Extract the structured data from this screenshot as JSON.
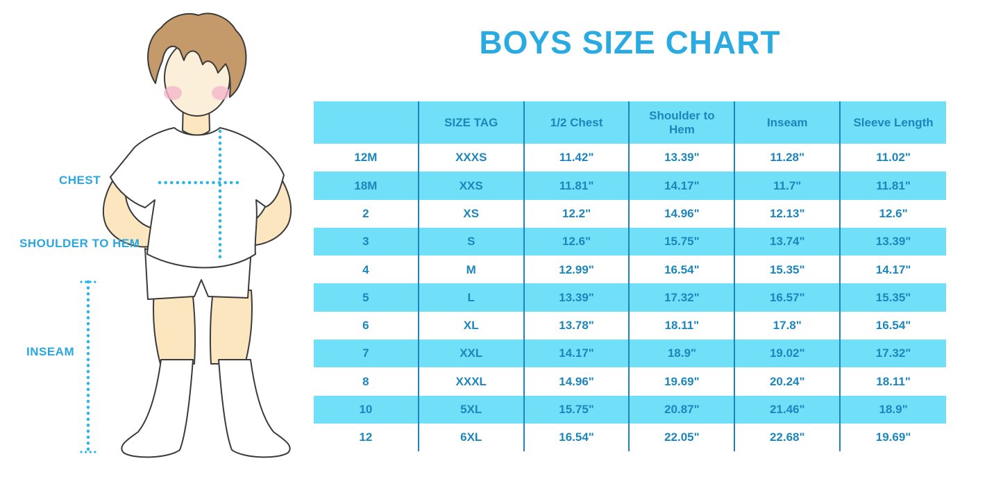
{
  "title": "BOYS SIZE CHART",
  "figure": {
    "labels": {
      "chest": "CHEST",
      "shoulder_to_hem": "SHOULDER TO HEM",
      "inseam": "INSEAM"
    }
  },
  "chart_data": {
    "type": "table",
    "title": "BOYS SIZE CHART",
    "columns": [
      "",
      "SIZE TAG",
      "1/2 Chest",
      "Shoulder to Hem",
      "Inseam",
      "Sleeve Length"
    ],
    "rows": [
      [
        "12M",
        "XXXS",
        "11.42\"",
        "13.39\"",
        "11.28\"",
        "11.02\""
      ],
      [
        "18M",
        "XXS",
        "11.81\"",
        "14.17\"",
        "11.7\"",
        "11.81\""
      ],
      [
        "2",
        "XS",
        "12.2\"",
        "14.96\"",
        "12.13\"",
        "12.6\""
      ],
      [
        "3",
        "S",
        "12.6\"",
        "15.75\"",
        "13.74\"",
        "13.39\""
      ],
      [
        "4",
        "M",
        "12.99\"",
        "16.54\"",
        "15.35\"",
        "14.17\""
      ],
      [
        "5",
        "L",
        "13.39\"",
        "17.32\"",
        "16.57\"",
        "15.35\""
      ],
      [
        "6",
        "XL",
        "13.78\"",
        "18.11\"",
        "17.8\"",
        "16.54\""
      ],
      [
        "7",
        "XXL",
        "14.17\"",
        "18.9\"",
        "19.02\"",
        "17.32\""
      ],
      [
        "8",
        "XXXL",
        "14.96\"",
        "19.69\"",
        "20.24\"",
        "18.11\""
      ],
      [
        "10",
        "5XL",
        "15.75\"",
        "20.87\"",
        "21.46\"",
        "18.9\""
      ],
      [
        "12",
        "6XL",
        "16.54\"",
        "22.05\"",
        "22.68\"",
        "19.69\""
      ]
    ],
    "stripe_pattern": "header cyan, then data rows alternate white/cyan starting with white",
    "units": "inches"
  },
  "colors": {
    "title_blue": "#29ABE2",
    "label_blue": "#29A7E0",
    "dotted_line_blue": "#2AB4EA",
    "table_fill_cyan": "#6FE0F8",
    "table_divider_blue": "#1C84B8",
    "table_text_blue": "#1C86BC",
    "skin": "#FBE6C0",
    "hair_brown": "#C49A6B"
  }
}
